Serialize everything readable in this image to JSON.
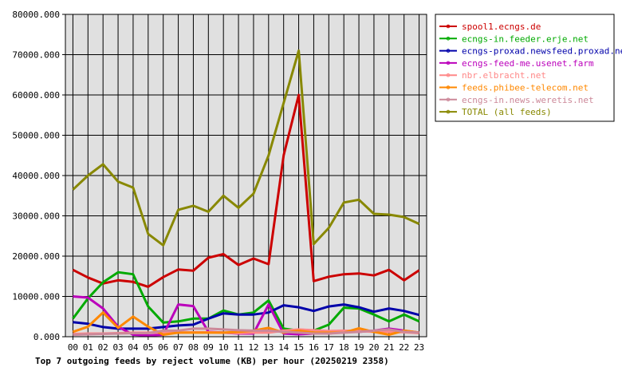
{
  "chart_data": {
    "type": "line",
    "title": "Top 7 outgoing feeds by reject volume (KB) per hour (20250219 2358)",
    "xlabel": "",
    "ylabel": "",
    "ylim": [
      0,
      80000
    ],
    "yticks": [
      "0.000",
      "10000.000",
      "20000.000",
      "30000.000",
      "40000.000",
      "50000.000",
      "60000.000",
      "70000.000",
      "80000.000"
    ],
    "categories": [
      "00",
      "01",
      "02",
      "03",
      "04",
      "05",
      "06",
      "07",
      "08",
      "09",
      "10",
      "11",
      "12",
      "13",
      "14",
      "15",
      "16",
      "17",
      "18",
      "19",
      "20",
      "21",
      "22",
      "23"
    ],
    "grid": true,
    "legend_position": "top-right",
    "series": [
      {
        "name": "spool1.ecngs.de",
        "color": "#cc0000",
        "values": [
          16600,
          14700,
          13200,
          14000,
          13600,
          12400,
          14800,
          16700,
          16400,
          19600,
          20500,
          17800,
          19400,
          18000,
          45000,
          60000,
          13800,
          14900,
          15500,
          15700,
          15200,
          16600,
          14000,
          16500
        ]
      },
      {
        "name": "ecngs-in.feeder.erje.net",
        "color": "#00aa00",
        "values": [
          4500,
          9500,
          13500,
          16000,
          15500,
          7500,
          3500,
          3800,
          4500,
          4500,
          6500,
          5500,
          6000,
          9000,
          2000,
          1500,
          1500,
          3000,
          7200,
          7000,
          5500,
          3800,
          5500,
          3800
        ]
      },
      {
        "name": "ecngs-proxad.newsfeed.proxad.net",
        "color": "#0000aa",
        "values": [
          3600,
          3200,
          2400,
          2000,
          2000,
          2000,
          2400,
          2800,
          3000,
          4500,
          5800,
          5500,
          5500,
          6000,
          7800,
          7300,
          6400,
          7500,
          8000,
          7300,
          6200,
          7000,
          6400,
          5400
        ]
      },
      {
        "name": "ecngs-feed-me.usenet.farm",
        "color": "#bb00bb",
        "values": [
          10000,
          9700,
          7000,
          2500,
          500,
          300,
          500,
          8000,
          7600,
          1200,
          1000,
          800,
          800,
          8000,
          800,
          600,
          800,
          800,
          1200,
          1200,
          1500,
          2000,
          1500,
          1000
        ]
      },
      {
        "name": "nbr.elbracht.net",
        "color": "#ff8888",
        "values": [
          700,
          800,
          800,
          900,
          1000,
          1000,
          1000,
          1000,
          1100,
          1100,
          1000,
          900,
          1000,
          1000,
          1500,
          1800,
          1600,
          1400,
          1500,
          1400,
          1200,
          1200,
          1100,
          900
        ]
      },
      {
        "name": "feeds.phibee-telecom.net",
        "color": "#ff8800",
        "values": [
          1200,
          2500,
          6000,
          2200,
          5000,
          2500,
          500,
          1000,
          1000,
          1000,
          1000,
          1200,
          1500,
          2200,
          1000,
          1500,
          1000,
          1000,
          1000,
          2100,
          1200,
          500,
          1500,
          1000
        ]
      },
      {
        "name": "ecngs-in.news.weretis.net",
        "color": "#cc8899",
        "values": [
          500,
          600,
          700,
          800,
          900,
          900,
          1500,
          1500,
          2000,
          2000,
          1800,
          1600,
          1500,
          1500,
          1200,
          1000,
          800,
          800,
          1000,
          1200,
          1500,
          1800,
          1200,
          1000
        ]
      },
      {
        "name": "TOTAL (all feeds)",
        "color": "#888800",
        "values": [
          36500,
          40000,
          42800,
          38500,
          37000,
          25500,
          22700,
          31500,
          32500,
          31000,
          35000,
          32000,
          35500,
          45000,
          58000,
          71000,
          23000,
          27000,
          33300,
          34000,
          30500,
          30300,
          29700,
          28000
        ]
      }
    ]
  }
}
